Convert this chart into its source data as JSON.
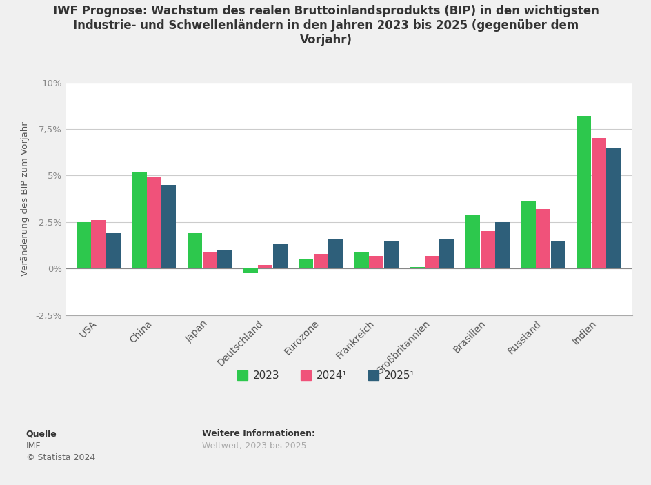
{
  "title": "IWF Prognose: Wachstum des realen Bruttoinlandsprodukts (BIP) in den wichtigsten\nIndustrie- und Schwellenländern in den Jahren 2023 bis 2025 (gegenüber dem\nVorjahr)",
  "ylabel": "Veränderung des BIP zum Vorjahr",
  "categories": [
    "USA",
    "China",
    "Japan",
    "Deutschland",
    "Eurozone",
    "Frankreich",
    "Großbritannien",
    "Brasilien",
    "Russland",
    "Indien"
  ],
  "values_2023": [
    2.5,
    5.2,
    1.9,
    -0.2,
    0.5,
    0.9,
    0.1,
    2.9,
    3.6,
    8.2
  ],
  "values_2024": [
    2.6,
    4.9,
    0.9,
    0.2,
    0.8,
    0.7,
    0.7,
    2.0,
    3.2,
    7.0
  ],
  "values_2025": [
    1.9,
    4.5,
    1.0,
    1.3,
    1.6,
    1.5,
    1.6,
    2.5,
    1.5,
    6.5
  ],
  "color_2023": "#2dc84d",
  "color_2024": "#f0527a",
  "color_2025": "#2e5f7a",
  "bg_color": "#f0f0f0",
  "plot_bg_color": "#ffffff",
  "ylim_min": -2.5,
  "ylim_max": 10.0,
  "yticks": [
    -2.5,
    0.0,
    2.5,
    5.0,
    7.5,
    10.0
  ],
  "ytick_labels": [
    "-2,5%",
    "0%",
    "2,5%",
    "5%",
    "7,5%",
    "10%"
  ],
  "legend_labels": [
    "2023",
    "2024¹",
    "2025¹"
  ],
  "source_label": "Quelle",
  "source_text": "IMF",
  "copyright_text": "© Statista 2024",
  "info_label": "Weitere Informationen:",
  "info_text": "Weltweit; 2023 bis 2025"
}
